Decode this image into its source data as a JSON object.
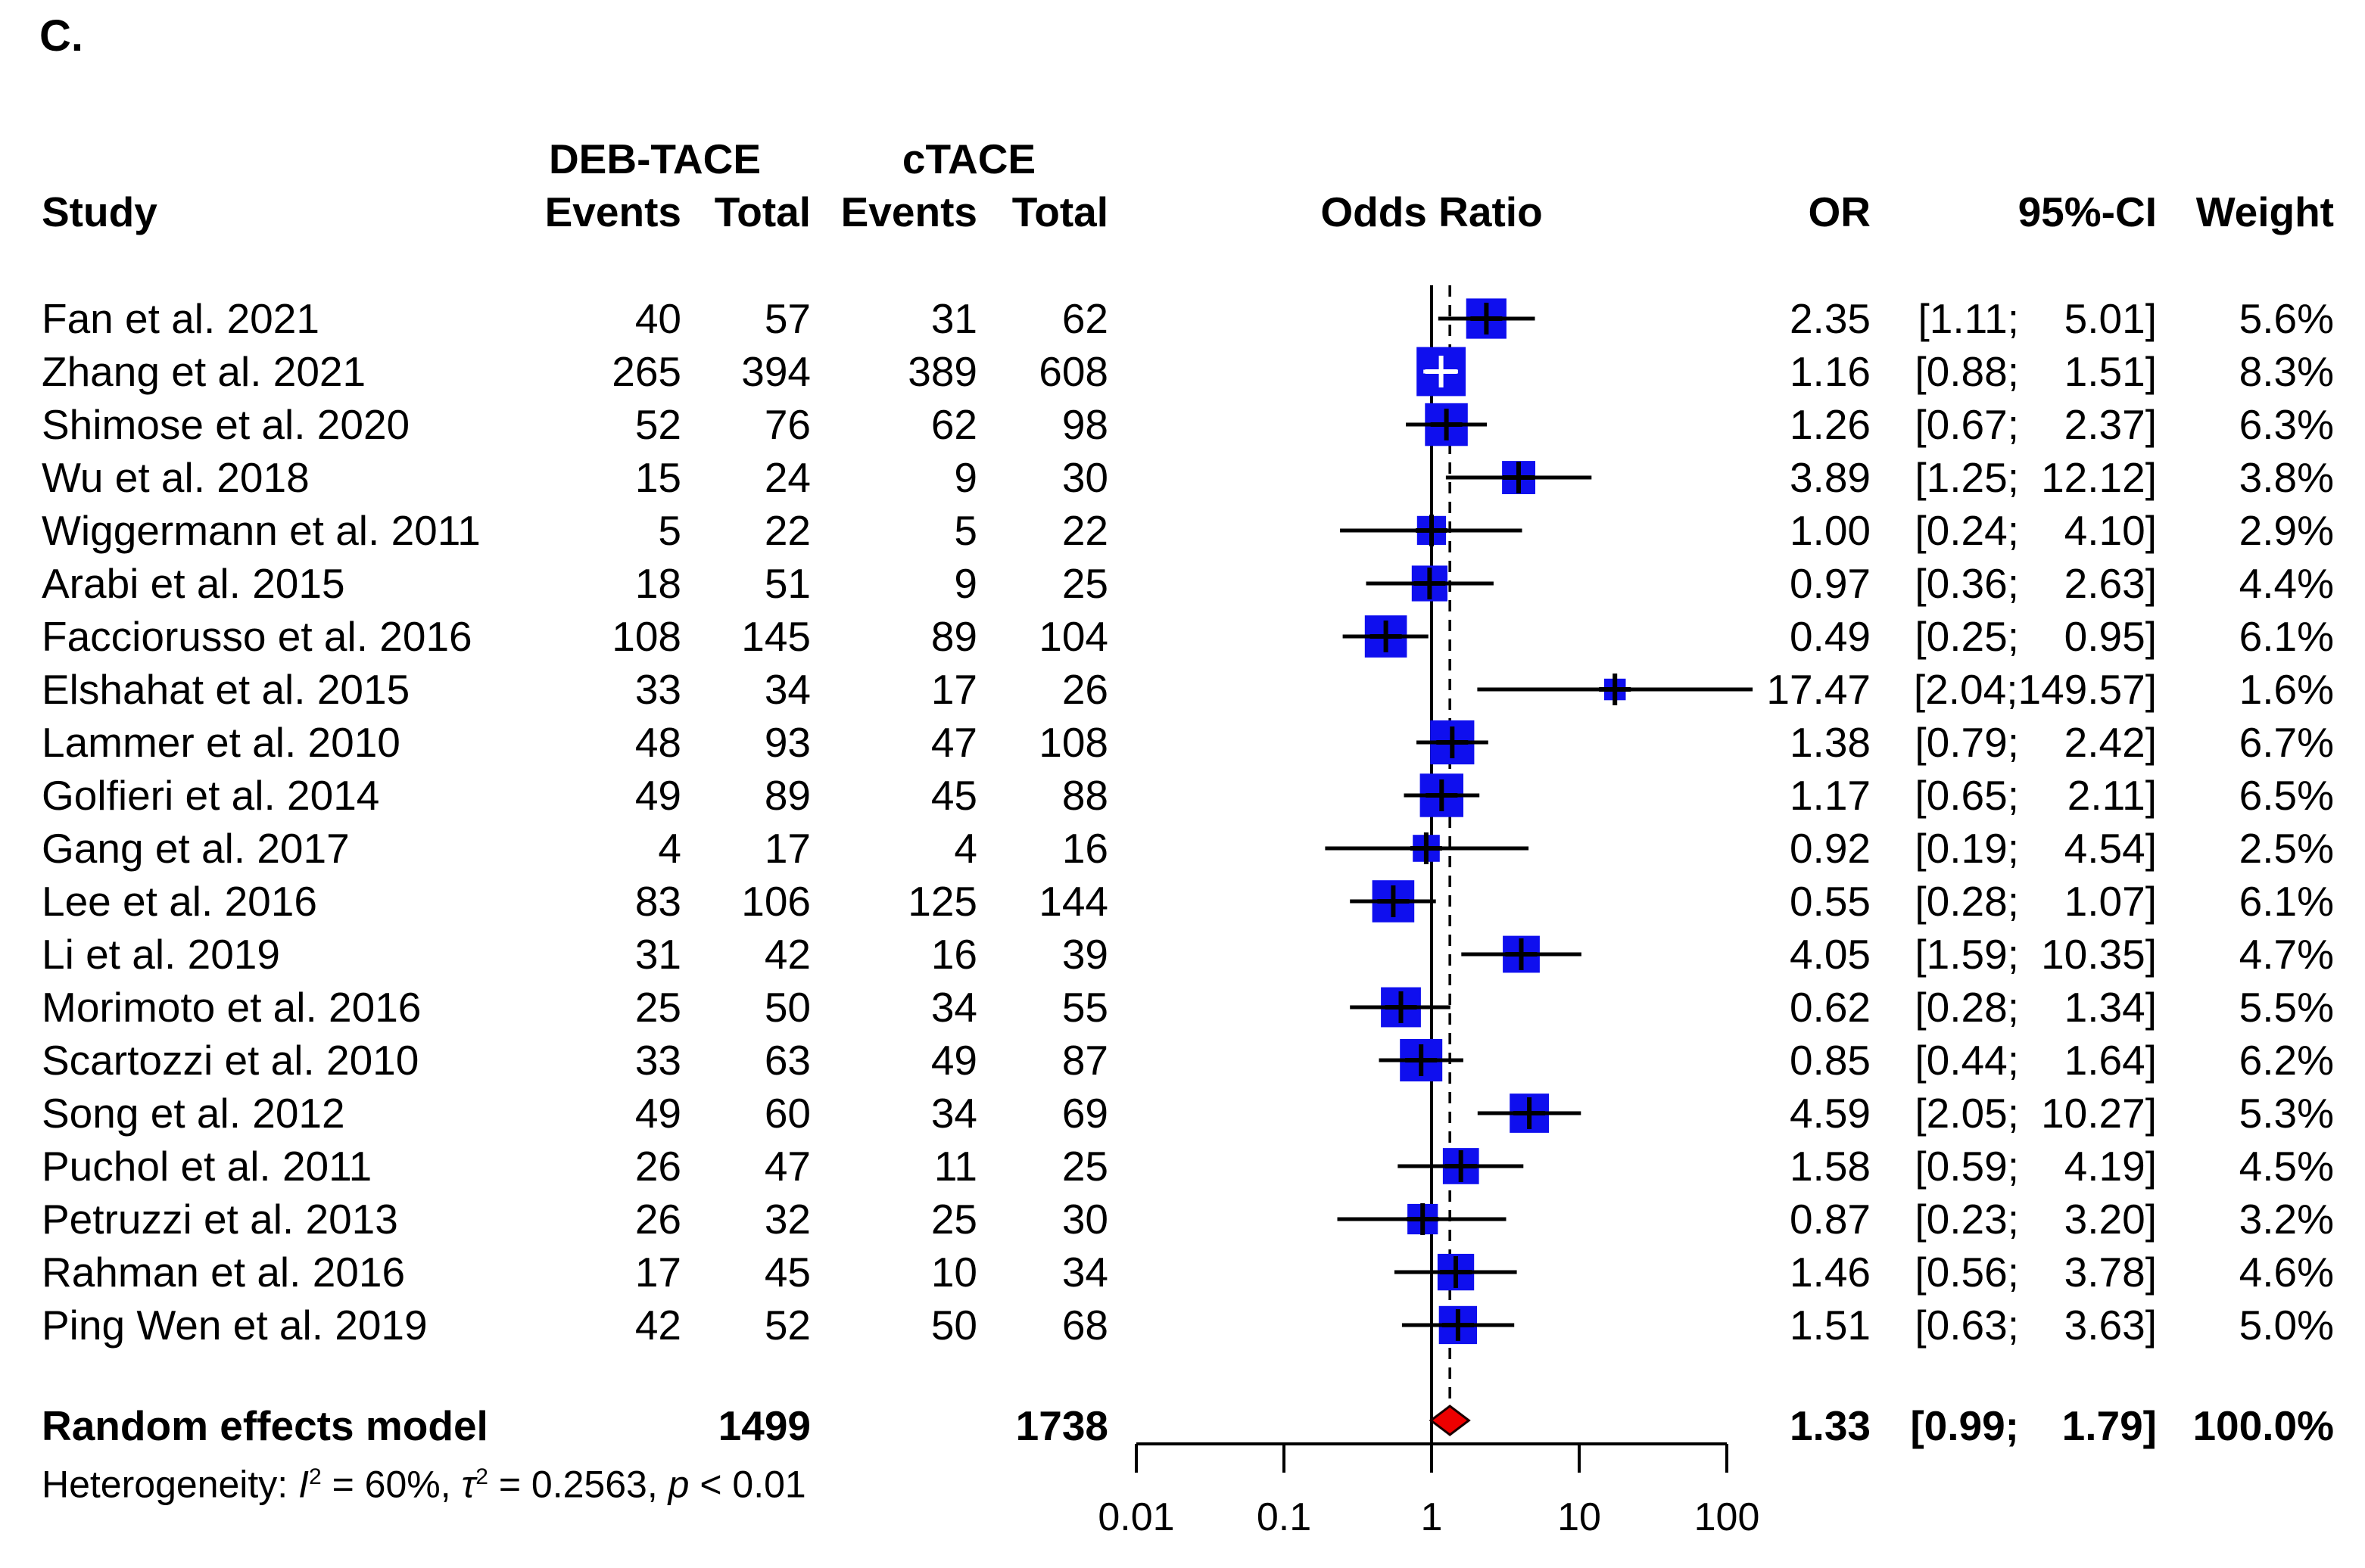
{
  "panel_label": "C.",
  "header": {
    "study": "Study",
    "group1": "DEB-TACE",
    "group2": "cTACE",
    "events": "Events",
    "total": "Total",
    "plot_title": "Odds Ratio",
    "or": "OR",
    "ci": "95%-CI",
    "weight": "Weight"
  },
  "colors": {
    "square": "#0f0fee",
    "diamond": "#ee0000",
    "diamond_border": "#1a0000",
    "line": "#000000",
    "ci_inside_line": "#ffffff",
    "text": "#000000"
  },
  "heterogeneity": {
    "prefix": "Heterogeneity: ",
    "i_symbol": "I",
    "i_sup": "2",
    "i_rest": " = 60%, ",
    "tau_symbol": "τ",
    "tau_sup": "2",
    "tau_rest": " = 0.2563, ",
    "p_symbol": "p",
    "p_rest": " < 0.01"
  },
  "chart_data": {
    "type": "forest",
    "effect_measure": "Odds Ratio",
    "x_scale": "log10",
    "xlim": [
      0.01,
      100
    ],
    "axis": {
      "ticks": [
        0.01,
        0.1,
        1,
        10,
        100
      ],
      "labels": [
        "0.01",
        "0.1",
        "1",
        "10",
        "100"
      ],
      "no_effect_line": 1,
      "summary_line": 1.33
    },
    "studies": [
      {
        "name": "Fan et al. 2021",
        "e1": 40,
        "t1": 57,
        "e2": 31,
        "t2": 62,
        "or": 2.35,
        "lo": 1.11,
        "hi": 5.01,
        "or_text": "2.35",
        "lo_text": "[1.11;",
        "hi_text": "5.01]",
        "weight": 5.6,
        "weight_text": "5.6%"
      },
      {
        "name": "Zhang et al. 2021",
        "e1": 265,
        "t1": 394,
        "e2": 389,
        "t2": 608,
        "or": 1.16,
        "lo": 0.88,
        "hi": 1.51,
        "or_text": "1.16",
        "lo_text": "[0.88;",
        "hi_text": "1.51]",
        "weight": 8.3,
        "weight_text": "8.3%",
        "ci_inside": true
      },
      {
        "name": "Shimose et al. 2020",
        "e1": 52,
        "t1": 76,
        "e2": 62,
        "t2": 98,
        "or": 1.26,
        "lo": 0.67,
        "hi": 2.37,
        "or_text": "1.26",
        "lo_text": "[0.67;",
        "hi_text": "2.37]",
        "weight": 6.3,
        "weight_text": "6.3%"
      },
      {
        "name": "Wu et al. 2018",
        "e1": 15,
        "t1": 24,
        "e2": 9,
        "t2": 30,
        "or": 3.89,
        "lo": 1.25,
        "hi": 12.12,
        "or_text": "3.89",
        "lo_text": "[1.25;",
        "hi_text": "12.12]",
        "weight": 3.8,
        "weight_text": "3.8%"
      },
      {
        "name": "Wiggermann et al. 2011",
        "e1": 5,
        "t1": 22,
        "e2": 5,
        "t2": 22,
        "or": 1.0,
        "lo": 0.24,
        "hi": 4.1,
        "or_text": "1.00",
        "lo_text": "[0.24;",
        "hi_text": "4.10]",
        "weight": 2.9,
        "weight_text": "2.9%"
      },
      {
        "name": "Arabi et al. 2015",
        "e1": 18,
        "t1": 51,
        "e2": 9,
        "t2": 25,
        "or": 0.97,
        "lo": 0.36,
        "hi": 2.63,
        "or_text": "0.97",
        "lo_text": "[0.36;",
        "hi_text": "2.63]",
        "weight": 4.4,
        "weight_text": "4.4%"
      },
      {
        "name": "Facciorusso et al. 2016",
        "e1": 108,
        "t1": 145,
        "e2": 89,
        "t2": 104,
        "or": 0.49,
        "lo": 0.25,
        "hi": 0.95,
        "or_text": "0.49",
        "lo_text": "[0.25;",
        "hi_text": "0.95]",
        "weight": 6.1,
        "weight_text": "6.1%"
      },
      {
        "name": "Elshahat et al. 2015",
        "e1": 33,
        "t1": 34,
        "e2": 17,
        "t2": 26,
        "or": 17.47,
        "lo": 2.04,
        "hi": 149.57,
        "or_text": "17.47",
        "lo_text": "[2.04;",
        "hi_text": "149.57]",
        "weight": 1.6,
        "weight_text": "1.6%"
      },
      {
        "name": "Lammer et al. 2010",
        "e1": 48,
        "t1": 93,
        "e2": 47,
        "t2": 108,
        "or": 1.38,
        "lo": 0.79,
        "hi": 2.42,
        "or_text": "1.38",
        "lo_text": "[0.79;",
        "hi_text": "2.42]",
        "weight": 6.7,
        "weight_text": "6.7%"
      },
      {
        "name": "Golfieri et al. 2014",
        "e1": 49,
        "t1": 89,
        "e2": 45,
        "t2": 88,
        "or": 1.17,
        "lo": 0.65,
        "hi": 2.11,
        "or_text": "1.17",
        "lo_text": "[0.65;",
        "hi_text": "2.11]",
        "weight": 6.5,
        "weight_text": "6.5%"
      },
      {
        "name": "Gang et al. 2017",
        "e1": 4,
        "t1": 17,
        "e2": 4,
        "t2": 16,
        "or": 0.92,
        "lo": 0.19,
        "hi": 4.54,
        "or_text": "0.92",
        "lo_text": "[0.19;",
        "hi_text": "4.54]",
        "weight": 2.5,
        "weight_text": "2.5%"
      },
      {
        "name": "Lee et al. 2016",
        "e1": 83,
        "t1": 106,
        "e2": 125,
        "t2": 144,
        "or": 0.55,
        "lo": 0.28,
        "hi": 1.07,
        "or_text": "0.55",
        "lo_text": "[0.28;",
        "hi_text": "1.07]",
        "weight": 6.1,
        "weight_text": "6.1%"
      },
      {
        "name": "Li et al. 2019",
        "e1": 31,
        "t1": 42,
        "e2": 16,
        "t2": 39,
        "or": 4.05,
        "lo": 1.59,
        "hi": 10.35,
        "or_text": "4.05",
        "lo_text": "[1.59;",
        "hi_text": "10.35]",
        "weight": 4.7,
        "weight_text": "4.7%"
      },
      {
        "name": "Morimoto et al. 2016",
        "e1": 25,
        "t1": 50,
        "e2": 34,
        "t2": 55,
        "or": 0.62,
        "lo": 0.28,
        "hi": 1.34,
        "or_text": "0.62",
        "lo_text": "[0.28;",
        "hi_text": "1.34]",
        "weight": 5.5,
        "weight_text": "5.5%"
      },
      {
        "name": "Scartozzi et al. 2010",
        "e1": 33,
        "t1": 63,
        "e2": 49,
        "t2": 87,
        "or": 0.85,
        "lo": 0.44,
        "hi": 1.64,
        "or_text": "0.85",
        "lo_text": "[0.44;",
        "hi_text": "1.64]",
        "weight": 6.2,
        "weight_text": "6.2%"
      },
      {
        "name": "Song et al. 2012",
        "e1": 49,
        "t1": 60,
        "e2": 34,
        "t2": 69,
        "or": 4.59,
        "lo": 2.05,
        "hi": 10.27,
        "or_text": "4.59",
        "lo_text": "[2.05;",
        "hi_text": "10.27]",
        "weight": 5.3,
        "weight_text": "5.3%"
      },
      {
        "name": "Puchol et al. 2011",
        "e1": 26,
        "t1": 47,
        "e2": 11,
        "t2": 25,
        "or": 1.58,
        "lo": 0.59,
        "hi": 4.19,
        "or_text": "1.58",
        "lo_text": "[0.59;",
        "hi_text": "4.19]",
        "weight": 4.5,
        "weight_text": "4.5%"
      },
      {
        "name": "Petruzzi et al. 2013",
        "e1": 26,
        "t1": 32,
        "e2": 25,
        "t2": 30,
        "or": 0.87,
        "lo": 0.23,
        "hi": 3.2,
        "or_text": "0.87",
        "lo_text": "[0.23;",
        "hi_text": "3.20]",
        "weight": 3.2,
        "weight_text": "3.2%"
      },
      {
        "name": "Rahman et al. 2016",
        "e1": 17,
        "t1": 45,
        "e2": 10,
        "t2": 34,
        "or": 1.46,
        "lo": 0.56,
        "hi": 3.78,
        "or_text": "1.46",
        "lo_text": "[0.56;",
        "hi_text": "3.78]",
        "weight": 4.6,
        "weight_text": "4.6%"
      },
      {
        "name": "Ping Wen et al. 2019",
        "e1": 42,
        "t1": 52,
        "e2": 50,
        "t2": 68,
        "or": 1.51,
        "lo": 0.63,
        "hi": 3.63,
        "or_text": "1.51",
        "lo_text": "[0.63;",
        "hi_text": "3.63]",
        "weight": 5.0,
        "weight_text": "5.0%"
      }
    ],
    "summary": {
      "label": "Random effects model",
      "t1": 1499,
      "t2": 1738,
      "or": 1.33,
      "lo": 0.99,
      "hi": 1.79,
      "or_text": "1.33",
      "lo_text": "[0.99;",
      "hi_text": "1.79]",
      "weight_text": "100.0%"
    }
  }
}
